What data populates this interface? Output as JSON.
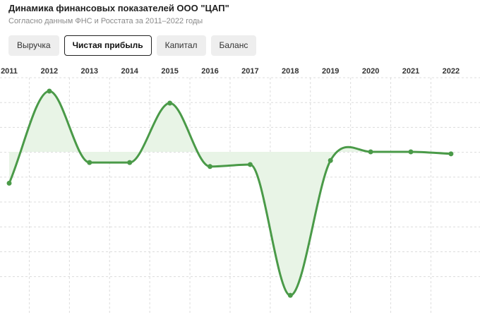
{
  "header": {
    "title": "Динамика финансовых показателей ООО \"ЦАП\"",
    "subtitle": "Согласно данным ФНС и Росстата за 2011–2022 годы"
  },
  "tabs": [
    {
      "label": "Выручка",
      "active": false
    },
    {
      "label": "Чистая прибыль",
      "active": true
    },
    {
      "label": "Капитал",
      "active": false
    },
    {
      "label": "Баланс",
      "active": false
    }
  ],
  "colors": {
    "line": "#4a9a48",
    "area": "#e8f4e6",
    "grid": "#dcdcdc"
  },
  "chart_data": {
    "type": "area",
    "title": "",
    "xlabel": "",
    "ylabel": "",
    "x": [
      "2011",
      "2012",
      "2013",
      "2014",
      "2015",
      "2016",
      "2017",
      "2018",
      "2019",
      "2020",
      "2021",
      "2022"
    ],
    "series": [
      {
        "values": [
          -0.47,
          0.91,
          -0.16,
          -0.16,
          0.73,
          -0.22,
          -0.19,
          -2.15,
          -0.13,
          0.0,
          0.0,
          -0.03
        ]
      }
    ],
    "ylim": [
      -2.3,
      1.0
    ],
    "grid": true,
    "legend": "none"
  }
}
